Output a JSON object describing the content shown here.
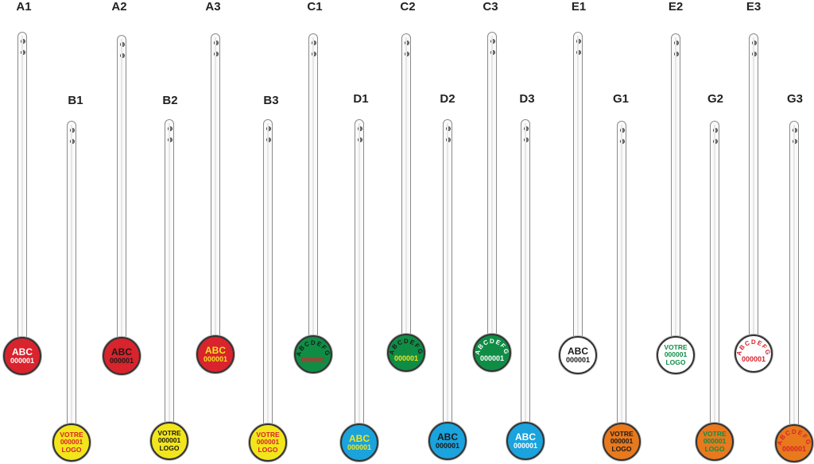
{
  "colors": {
    "red": "#d9232d",
    "yellow": "#f2e51b",
    "green": "#0f8d45",
    "blue": "#1aa3dd",
    "white": "#ffffff",
    "orange": "#e8791d",
    "black": "#1a1a1a"
  },
  "tags": [
    {
      "id": "A1",
      "fill": "red",
      "style": "abc",
      "lines": [
        "ABC",
        "000001"
      ],
      "colors": [
        "white",
        "white"
      ]
    },
    {
      "id": "A2",
      "fill": "red",
      "style": "abc",
      "lines": [
        "ABC",
        "000001"
      ],
      "colors": [
        "black",
        "black"
      ]
    },
    {
      "id": "A3",
      "fill": "red",
      "style": "abc",
      "lines": [
        "ABC",
        "000001"
      ],
      "colors": [
        "yellow",
        "yellow"
      ]
    },
    {
      "id": "B1",
      "fill": "yellow",
      "style": "logo",
      "lines": [
        "VOTRE",
        "000001",
        "LOGO"
      ],
      "colors": [
        "red",
        "red",
        "red"
      ]
    },
    {
      "id": "B2",
      "fill": "yellow",
      "style": "logo",
      "lines": [
        "VOTRE",
        "000001",
        "LOGO"
      ],
      "colors": [
        "black",
        "black",
        "black"
      ]
    },
    {
      "id": "B3",
      "fill": "yellow",
      "style": "logo",
      "lines": [
        "VOTRE",
        "000001",
        "LOGO"
      ],
      "colors": [
        "red",
        "red",
        "red"
      ]
    },
    {
      "id": "C1",
      "fill": "green",
      "style": "arc",
      "lines": [
        "ABCDEFG",
        "000001"
      ],
      "colors": [
        "black",
        "red"
      ]
    },
    {
      "id": "C2",
      "fill": "green",
      "style": "arc",
      "lines": [
        "ABCDEFG",
        "000001"
      ],
      "colors": [
        "black",
        "yellow"
      ]
    },
    {
      "id": "C3",
      "fill": "green",
      "style": "arc",
      "lines": [
        "ABCDEFG",
        "000001"
      ],
      "colors": [
        "white",
        "white"
      ]
    },
    {
      "id": "D1",
      "fill": "blue",
      "style": "abc",
      "lines": [
        "ABC",
        "000001"
      ],
      "colors": [
        "yellow",
        "yellow"
      ]
    },
    {
      "id": "D2",
      "fill": "blue",
      "style": "abc",
      "lines": [
        "ABC",
        "000001"
      ],
      "colors": [
        "black",
        "black"
      ]
    },
    {
      "id": "D3",
      "fill": "blue",
      "style": "abc",
      "lines": [
        "ABC",
        "000001"
      ],
      "colors": [
        "white",
        "white"
      ]
    },
    {
      "id": "E1",
      "fill": "white",
      "style": "abc",
      "lines": [
        "ABC",
        "000001"
      ],
      "colors": [
        "black",
        "black"
      ]
    },
    {
      "id": "E2",
      "fill": "white",
      "style": "logo",
      "lines": [
        "VOTRE",
        "000001",
        "LOGO"
      ],
      "colors": [
        "green",
        "green",
        "green"
      ]
    },
    {
      "id": "E3",
      "fill": "white",
      "style": "arc",
      "lines": [
        "ABCDEFG",
        "000001"
      ],
      "colors": [
        "red",
        "red"
      ]
    },
    {
      "id": "G1",
      "fill": "orange",
      "style": "logo",
      "lines": [
        "VOTRE",
        "000001",
        "LOGO"
      ],
      "colors": [
        "black",
        "black",
        "black"
      ]
    },
    {
      "id": "G2",
      "fill": "orange",
      "style": "logo",
      "lines": [
        "VOTRE",
        "000001",
        "LOGO"
      ],
      "colors": [
        "green",
        "green",
        "green"
      ]
    },
    {
      "id": "G3",
      "fill": "orange",
      "style": "arc",
      "lines": [
        "ABCDEFG",
        "000001"
      ],
      "colors": [
        "red",
        "red"
      ]
    }
  ]
}
